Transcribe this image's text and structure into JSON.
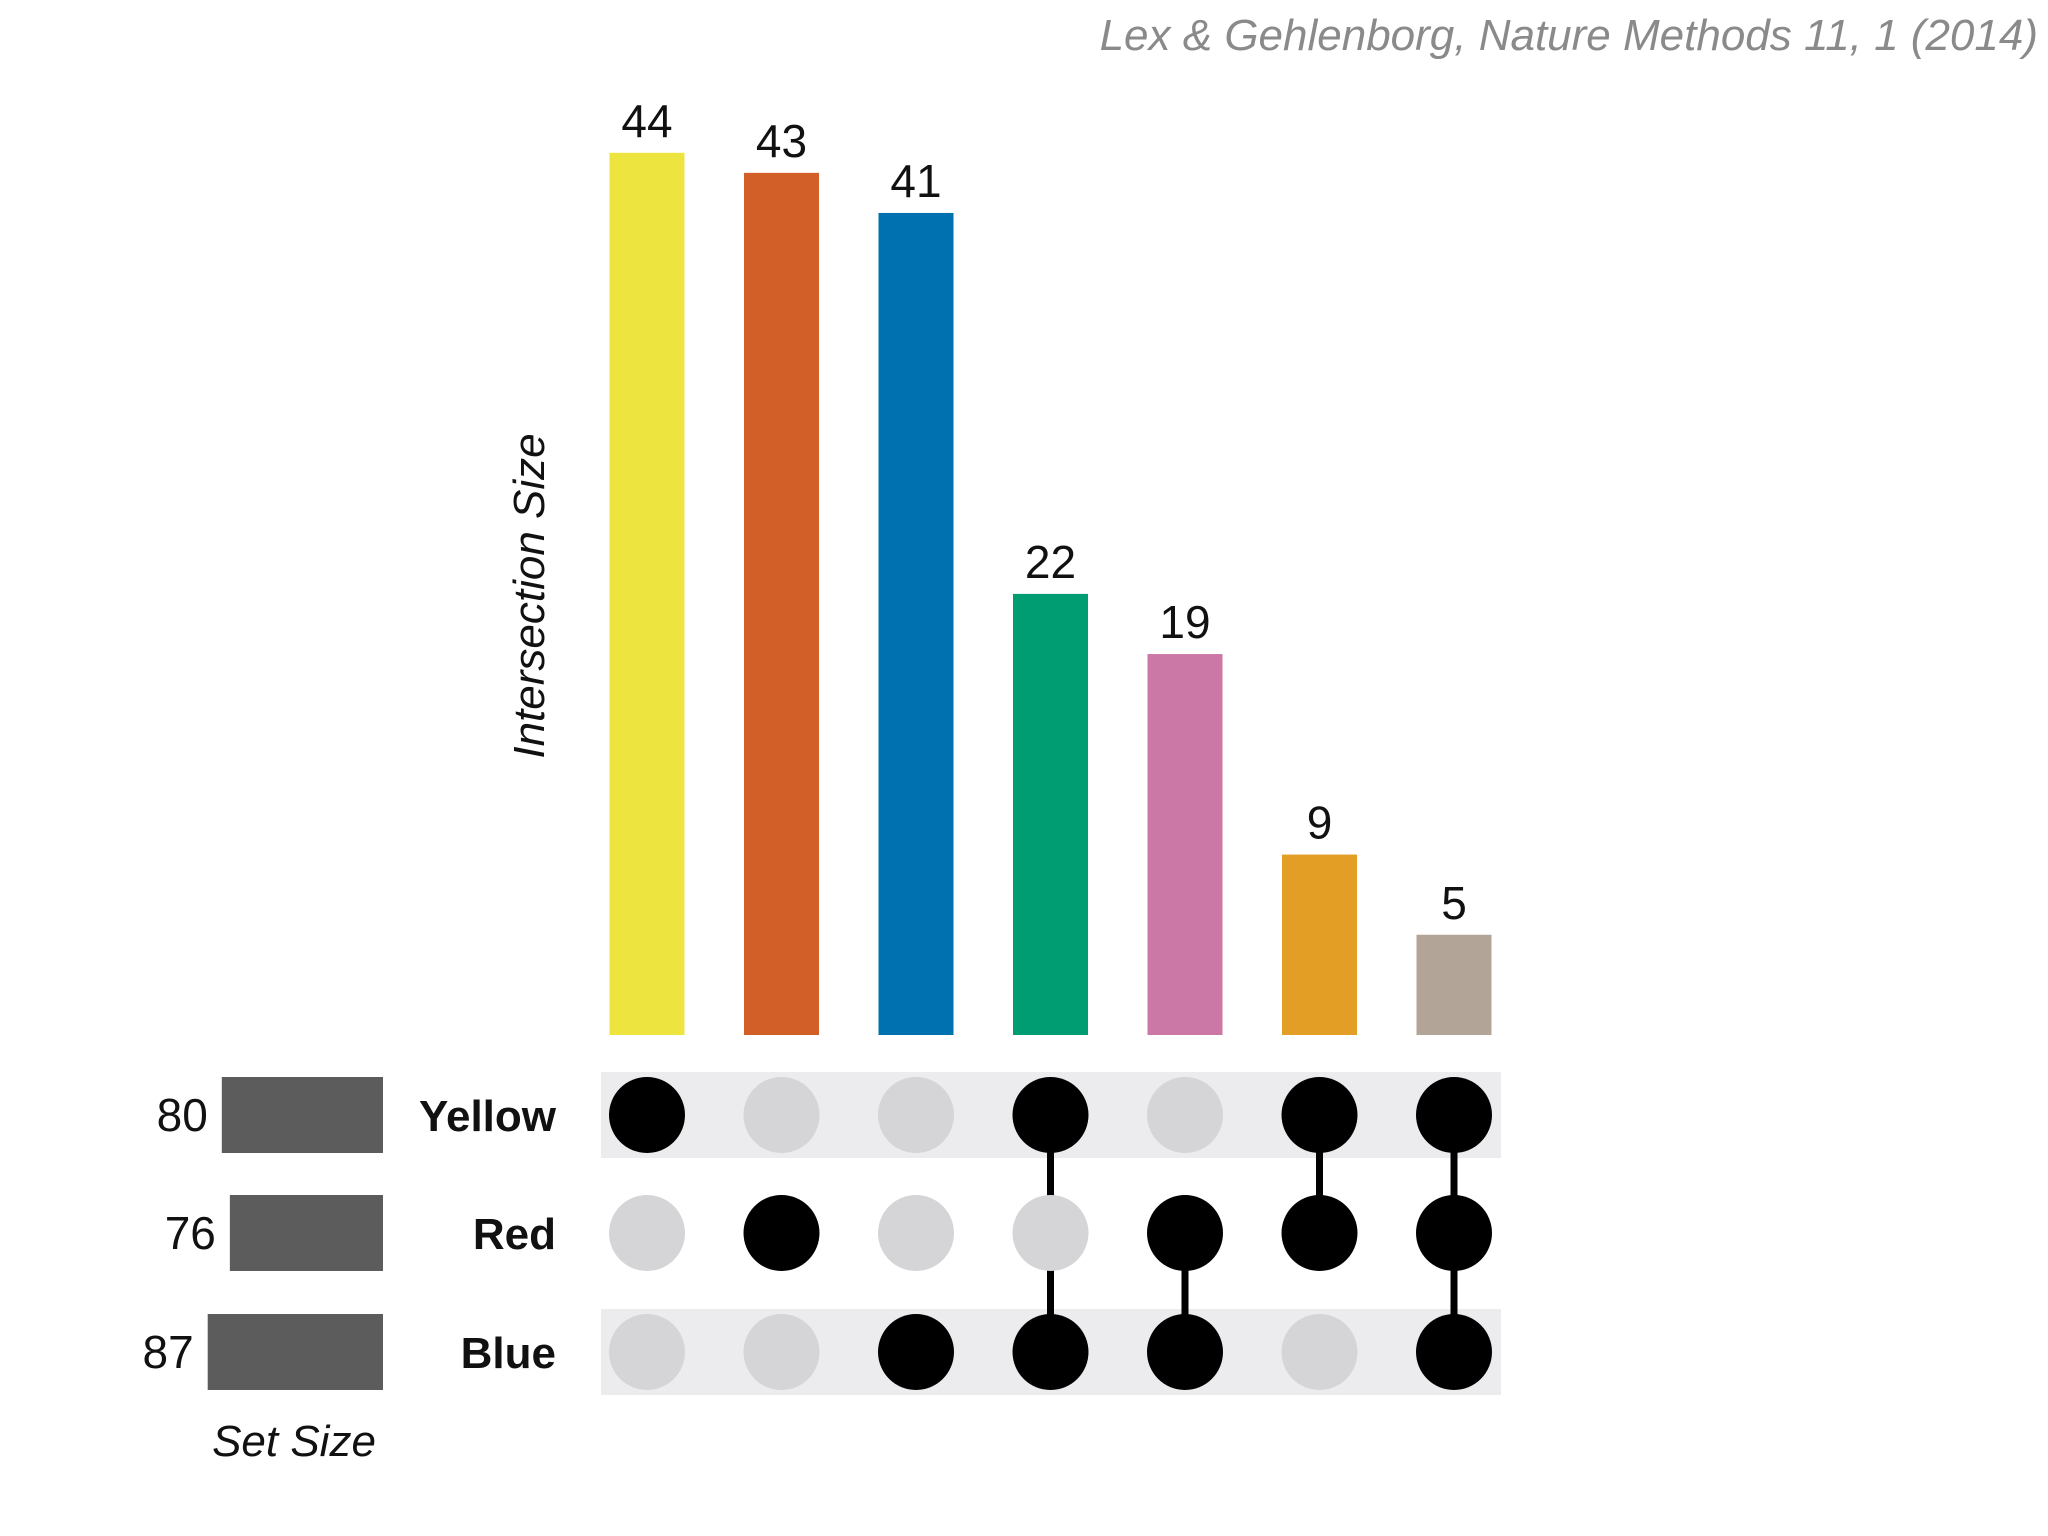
{
  "citation": "Lex & Gehlenborg, Nature Methods 11, 1 (2014)",
  "chart_data": {
    "type": "bar",
    "subtype": "upset",
    "ylabel": "Intersection Size",
    "set_size_label": "Set Size",
    "sets": [
      {
        "name": "Yellow",
        "size": 80
      },
      {
        "name": "Red",
        "size": 76
      },
      {
        "name": "Blue",
        "size": 87
      }
    ],
    "intersections": [
      {
        "value": 44,
        "color": "#eee43f",
        "members": [
          "Yellow"
        ]
      },
      {
        "value": 43,
        "color": "#d35f28",
        "members": [
          "Red"
        ]
      },
      {
        "value": 41,
        "color": "#0071b0",
        "members": [
          "Blue"
        ]
      },
      {
        "value": 22,
        "color": "#009d73",
        "members": [
          "Yellow",
          "Blue"
        ]
      },
      {
        "value": 19,
        "color": "#cc78a7",
        "members": [
          "Red",
          "Blue"
        ]
      },
      {
        "value": 9,
        "color": "#e39f25",
        "members": [
          "Yellow",
          "Red"
        ]
      },
      {
        "value": 5,
        "color": "#b2a497",
        "members": [
          "Yellow",
          "Red",
          "Blue"
        ]
      }
    ],
    "colors": {
      "set_bar": "#5c5c5c",
      "dot_active": "#000000",
      "dot_inactive": "#d5d5d8",
      "row_stripe": "#ececef"
    }
  }
}
